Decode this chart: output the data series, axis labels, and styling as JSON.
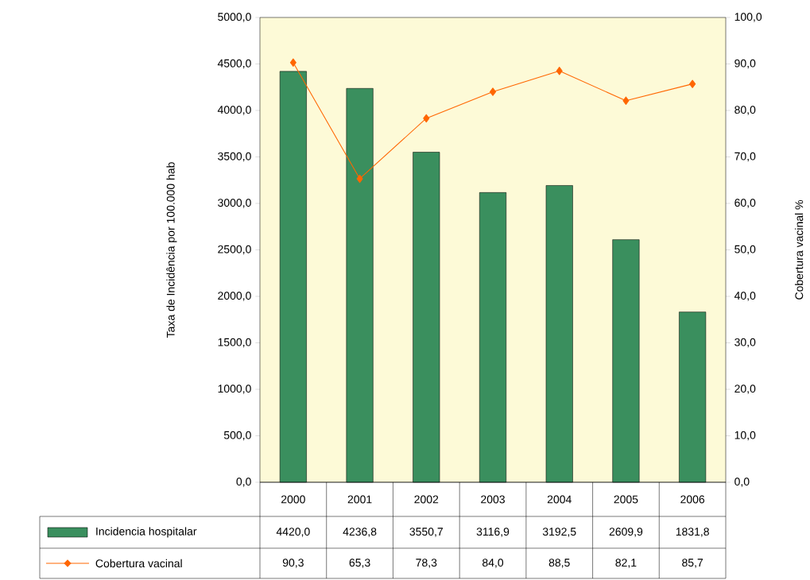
{
  "chart_data": {
    "type": "bar",
    "ylabel": "Taxa de Incidência por 100.000 hab",
    "y2label": "Cobertura vacinal %",
    "categories": [
      "2000",
      "2001",
      "2002",
      "2003",
      "2004",
      "2005",
      "2006"
    ],
    "series": [
      {
        "name": "Incidencia hospitalar",
        "color": "#3a8f5e",
        "values": [
          4420.0,
          4236.8,
          3550.7,
          3116.9,
          3192.5,
          2609.9,
          1831.8
        ],
        "value_labels": [
          "4420,0",
          "4236,8",
          "3550,7",
          "3116,9",
          "3192,5",
          "2609,9",
          "1831,8"
        ]
      },
      {
        "name": "Cobertura vacinal",
        "type": "line",
        "axis": "y2",
        "color": "#ff6600",
        "values": [
          90.3,
          65.3,
          78.3,
          84.0,
          88.5,
          82.1,
          85.7
        ],
        "value_labels": [
          "90,3",
          "65,3",
          "78,3",
          "84,0",
          "88,5",
          "82,1",
          "85,7"
        ]
      }
    ],
    "ylim": [
      0,
      5000
    ],
    "yticks": [
      {
        "value": 0,
        "label": "0,0"
      },
      {
        "value": 500,
        "label": "500,0"
      },
      {
        "value": 1000,
        "label": "1000,0"
      },
      {
        "value": 1500,
        "label": "1500,0"
      },
      {
        "value": 2000,
        "label": "2000,0"
      },
      {
        "value": 2500,
        "label": "2500,0"
      },
      {
        "value": 3000,
        "label": "3000,0"
      },
      {
        "value": 3500,
        "label": "3500,0"
      },
      {
        "value": 4000,
        "label": "4000,0"
      },
      {
        "value": 4500,
        "label": "4500,0"
      },
      {
        "value": 5000,
        "label": "5000,0"
      }
    ],
    "y2lim": [
      0,
      100
    ],
    "y2ticks": [
      {
        "value": 0,
        "label": "0,0"
      },
      {
        "value": 10,
        "label": "10,0"
      },
      {
        "value": 20,
        "label": "20,0"
      },
      {
        "value": 30,
        "label": "30,0"
      },
      {
        "value": 40,
        "label": "40,0"
      },
      {
        "value": 50,
        "label": "50,0"
      },
      {
        "value": 60,
        "label": "60,0"
      },
      {
        "value": 70,
        "label": "70,0"
      },
      {
        "value": 80,
        "label": "80,0"
      },
      {
        "value": 90,
        "label": "90,0"
      },
      {
        "value": 100,
        "label": "100,0"
      }
    ],
    "legend": "bottom",
    "marker": "diamond",
    "grid": false
  }
}
